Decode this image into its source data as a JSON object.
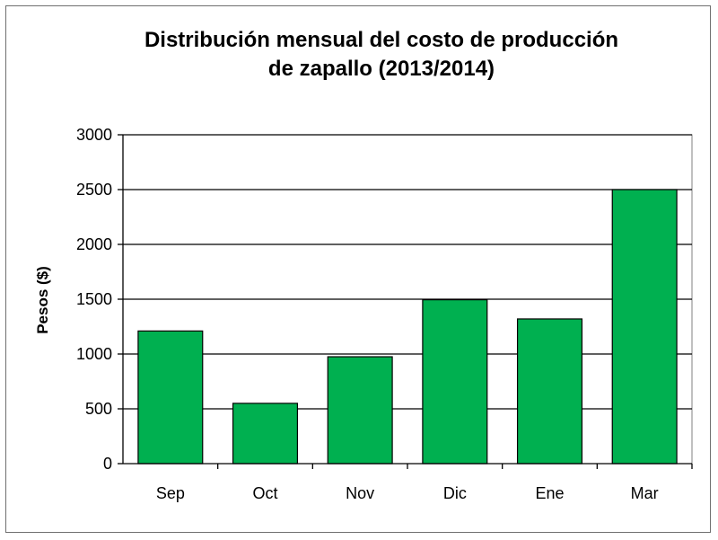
{
  "chart_data": {
    "type": "bar",
    "title_lines": [
      "Distribución mensual del costo de producción",
      "de zapallo (2013/2014)"
    ],
    "xlabel": "",
    "ylabel": "Pesos ($)",
    "categories": [
      "Sep",
      "Oct",
      "Nov",
      "Dic",
      "Ene",
      "Mar"
    ],
    "values": [
      1210,
      550,
      975,
      1495,
      1320,
      2500
    ],
    "ylim": [
      0,
      3000
    ],
    "yticks": [
      "0",
      "500",
      "1000",
      "1500",
      "2000",
      "2500",
      "3000"
    ],
    "grid": "horizontal",
    "legend": "none",
    "colors": {
      "bar_fill": "#00b050",
      "bar_stroke": "#000000",
      "grid": "#000000",
      "axis": "#808080",
      "background": "#ffffff"
    }
  }
}
